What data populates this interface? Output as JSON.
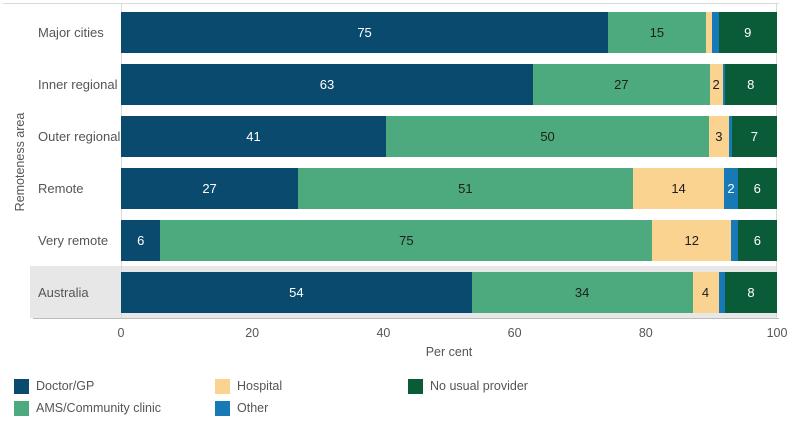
{
  "chart_data": {
    "type": "bar",
    "orientation": "horizontal",
    "stacked": true,
    "title": "",
    "xlabel": "Per cent",
    "ylabel": "Remoteness area",
    "xlim": [
      0,
      100
    ],
    "x_ticks": [
      0,
      20,
      40,
      60,
      80,
      100
    ],
    "gridlines": "vertical boundary lines at 0 and 100 only",
    "legend_position": "bottom",
    "series": [
      {
        "name": "Doctor/GP",
        "key": "doctor-gp",
        "color": "#0b4a6f",
        "label_color": "#ffffff"
      },
      {
        "name": "AMS/Community clinic",
        "key": "ams-community-clinic",
        "color": "#4caa7e",
        "label_color": "#1e1e1e"
      },
      {
        "name": "Hospital",
        "key": "hospital",
        "color": "#fad391",
        "label_color": "#1e1e1e"
      },
      {
        "name": "Other",
        "key": "other",
        "color": "#1779b5",
        "label_color": "#ffffff"
      },
      {
        "name": "No usual provider",
        "key": "no-usual-provider",
        "color": "#0a5c38",
        "label_color": "#ffffff"
      }
    ],
    "categories": [
      "Major cities",
      "Inner regional",
      "Outer regional",
      "Remote",
      "Very remote",
      "Australia"
    ],
    "rows": [
      {
        "category": "Major cities",
        "highlight": false,
        "values": [
          75,
          15,
          1,
          1,
          9
        ],
        "labels": [
          "75",
          "15",
          "",
          "",
          "9"
        ]
      },
      {
        "category": "Inner regional",
        "highlight": false,
        "values": [
          63,
          27,
          2,
          0.3,
          8
        ],
        "labels": [
          "63",
          "27",
          "2",
          "",
          "8"
        ]
      },
      {
        "category": "Outer regional",
        "highlight": false,
        "values": [
          41,
          50,
          3,
          0.5,
          7
        ],
        "labels": [
          "41",
          "50",
          "3",
          "",
          "7"
        ]
      },
      {
        "category": "Remote",
        "highlight": false,
        "values": [
          27,
          51,
          14,
          2,
          6
        ],
        "labels": [
          "27",
          "51",
          "14",
          "2",
          "6"
        ]
      },
      {
        "category": "Very remote",
        "highlight": false,
        "values": [
          6,
          75,
          12,
          1,
          6
        ],
        "labels": [
          "6",
          "75",
          "12",
          "",
          "6"
        ]
      },
      {
        "category": "Australia",
        "highlight": true,
        "values": [
          54,
          34,
          4,
          1,
          8
        ],
        "labels": [
          "54",
          "34",
          "4",
          "",
          "8"
        ]
      }
    ]
  },
  "legend": {
    "columns": [
      [
        0,
        1
      ],
      [
        2,
        3
      ],
      [
        4
      ]
    ]
  },
  "palette": {
    "background": "#ffffff",
    "highlight_band": "#e7e7e7",
    "gridline": "#d9d9d9",
    "axis_line": "#bcbcbc",
    "axis_text": "#555555"
  }
}
